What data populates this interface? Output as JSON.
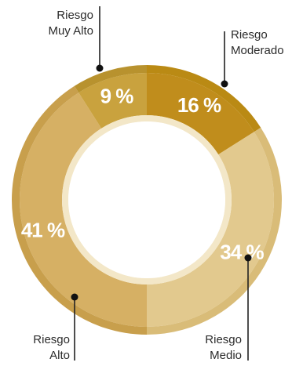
{
  "chart_data": {
    "type": "pie",
    "variant": "donut",
    "slices": [
      {
        "label_line1": "Riesgo",
        "label_line2": "Moderado",
        "pct_label": "16 %",
        "value": 16,
        "color": "#c08d1c",
        "ring_color": "#ba8a14"
      },
      {
        "label_line1": "Riesgo",
        "label_line2": "Medio",
        "pct_label": "34 %",
        "value": 34,
        "color": "#e2c98e",
        "ring_color": "#d9bc78"
      },
      {
        "label_line1": "Riesgo",
        "label_line2": "Alto",
        "pct_label": "41 %",
        "value": 41,
        "color": "#d6b064",
        "ring_color": "#c89f4c"
      },
      {
        "label_line1": "Riesgo",
        "label_line2": "Muy Alto",
        "pct_label": "9 %",
        "value": 9,
        "color": "#c9a23e",
        "ring_color": "#b8922e"
      }
    ]
  }
}
